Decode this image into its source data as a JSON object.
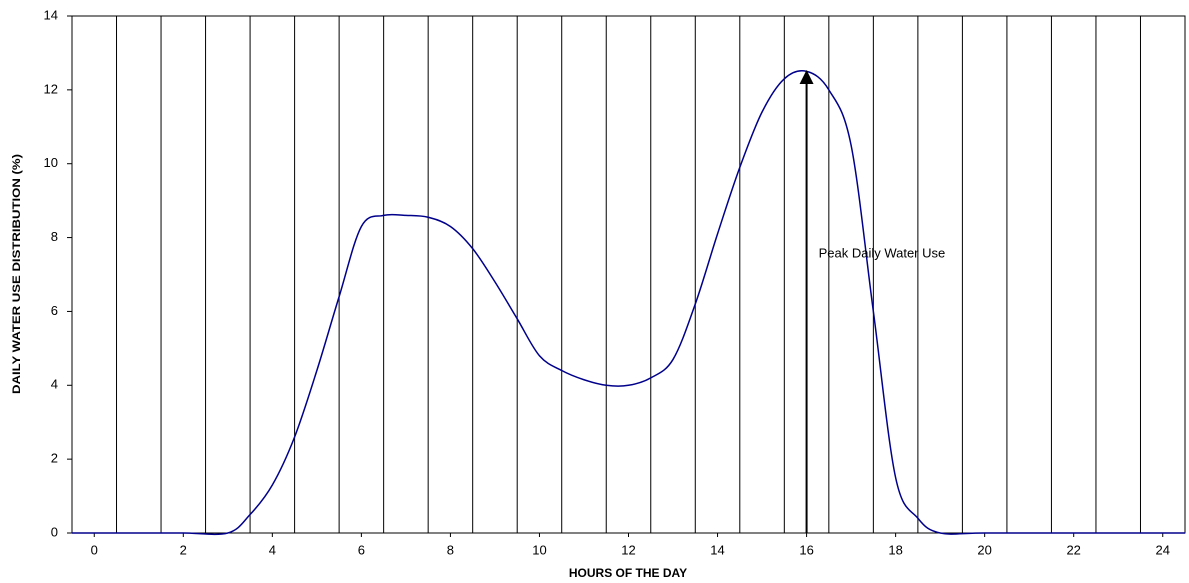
{
  "chart_data": {
    "type": "line",
    "x_label": "HOURS OF THE DAY",
    "y_label": "DAILY WATER USE DISTRIBUTION (%)",
    "x": [
      -0.5,
      0,
      1,
      2,
      3,
      3.5,
      4,
      4.5,
      5,
      5.5,
      6,
      6.5,
      7,
      7.5,
      8,
      8.5,
      9,
      9.5,
      10,
      10.5,
      11,
      11.5,
      12,
      12.5,
      13,
      13.5,
      14,
      14.5,
      15,
      15.5,
      16,
      16.5,
      17,
      17.5,
      18,
      18.5,
      19,
      20,
      22,
      24,
      24.5
    ],
    "series": [
      {
        "color": "#00008b",
        "values": [
          0,
          0,
          0,
          0,
          0,
          0.5,
          1.3,
          2.6,
          4.4,
          6.4,
          8.3,
          8.6,
          8.6,
          8.55,
          8.3,
          7.7,
          6.8,
          5.8,
          4.8,
          4.4,
          4.15,
          4.0,
          4.0,
          4.2,
          4.7,
          6.2,
          8.1,
          9.9,
          11.4,
          12.3,
          12.5,
          12.0,
          10.5,
          6.0,
          1.5,
          0.4,
          0,
          0,
          0,
          0,
          0
        ]
      }
    ],
    "xlim": [
      -0.5,
      24.5
    ],
    "xticks": [
      0,
      2,
      4,
      6,
      8,
      10,
      12,
      14,
      16,
      18,
      20,
      22,
      24
    ],
    "x_minor_gridlines": [
      0.5,
      1.5,
      2.5,
      3.5,
      4.5,
      5.5,
      6.5,
      7.5,
      8.5,
      9.5,
      10.5,
      11.5,
      12.5,
      13.5,
      14.5,
      15.5,
      16.5,
      17.5,
      18.5,
      19.5,
      20.5,
      21.5,
      22.5,
      23.5
    ],
    "ylim": [
      0,
      14
    ],
    "yticks": [
      0,
      2,
      4,
      6,
      8,
      10,
      12,
      14
    ],
    "annotation": {
      "text": "Peak Daily Water Use",
      "x": 16,
      "y": 12.5
    }
  }
}
